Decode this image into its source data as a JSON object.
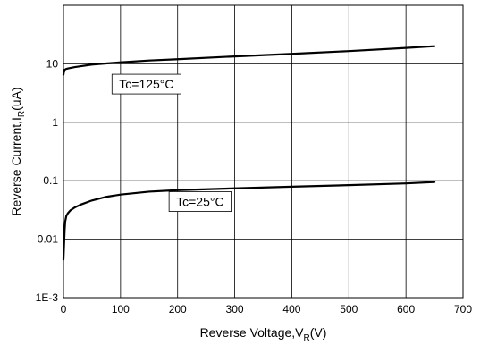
{
  "chart_data": {
    "type": "line",
    "xlim": [
      0,
      700
    ],
    "ylim": [
      0.001,
      100
    ],
    "yscale": "log",
    "grid": true,
    "x_ticks": [
      0,
      100,
      200,
      300,
      400,
      500,
      600,
      700
    ],
    "x_tick_labels": [
      "0",
      "100",
      "200",
      "300",
      "400",
      "500",
      "600",
      "700"
    ],
    "y_ticks": [
      0.001,
      0.01,
      0.1,
      1,
      10
    ],
    "y_tick_labels": [
      "1E-3",
      "0.01",
      "0.1",
      "1",
      "10"
    ],
    "xlabel": {
      "main": "Reverse Voltage,V",
      "sub": "R",
      "tail": "(V)"
    },
    "ylabel": {
      "main": "Reverse Current,I",
      "sub": "R",
      "tail": "(uA)"
    },
    "series": [
      {
        "x": [
          0,
          1,
          2,
          5,
          10,
          20,
          50,
          100,
          150,
          200,
          300,
          400,
          500,
          600,
          650
        ],
        "y": [
          6.5,
          7.5,
          7.9,
          8.2,
          8.4,
          8.8,
          9.7,
          10.6,
          11.4,
          12.0,
          13.4,
          14.8,
          16.5,
          18.7,
          20
        ]
      },
      {
        "x": [
          0,
          1,
          2,
          3,
          5,
          8,
          12,
          20,
          30,
          50,
          75,
          100,
          150,
          200,
          300,
          400,
          500,
          600,
          650
        ],
        "y": [
          0.0045,
          0.008,
          0.014,
          0.02,
          0.025,
          0.028,
          0.031,
          0.035,
          0.039,
          0.046,
          0.053,
          0.058,
          0.065,
          0.069,
          0.074,
          0.079,
          0.084,
          0.09,
          0.095
        ]
      }
    ],
    "annotations": [
      {
        "text": "Tc=125°C",
        "x": 85,
        "y": 4.5
      },
      {
        "text": "Tc=25°C",
        "x": 185,
        "y": 0.044
      }
    ]
  }
}
